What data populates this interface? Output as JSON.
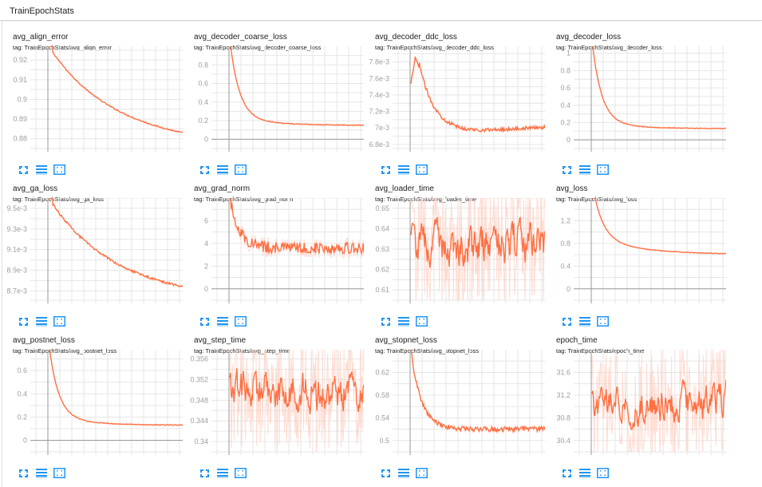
{
  "header": {
    "title": "TrainEpochStats"
  },
  "colors": {
    "line": "#ff7043",
    "line_faint": "#ffccbc",
    "grid": "#e6e6e6",
    "axis": "#999999",
    "tick_text": "#9e9e9e",
    "icon": "#2196f3"
  },
  "icons": {
    "fullscreen": "fullscreen-icon",
    "data": "toggle-log-scale-icon",
    "fit": "fit-domain-icon"
  },
  "cards": [
    {
      "title": "avg_align_error",
      "tag": "tag: TrainEpochStats/avg_align_error"
    },
    {
      "title": "avg_decoder_coarse_loss",
      "tag": "tag: TrainEpochStats/avg_decoder_coarse_loss"
    },
    {
      "title": "avg_decoder_ddc_loss",
      "tag": "tag: TrainEpochStats/avg_decoder_ddc_loss"
    },
    {
      "title": "avg_decoder_loss",
      "tag": "tag: TrainEpochStats/avg_decoder_loss"
    },
    {
      "title": "avg_ga_loss",
      "tag": "tag: TrainEpochStats/avg_ga_loss"
    },
    {
      "title": "avg_grad_norm",
      "tag": "tag: TrainEpochStats/avg_grad_norm"
    },
    {
      "title": "avg_loader_time",
      "tag": "tag: TrainEpochStats/avg_loader_time"
    },
    {
      "title": "avg_loss",
      "tag": "tag: TrainEpochStats/avg_loss"
    },
    {
      "title": "avg_postnet_loss",
      "tag": "tag: TrainEpochStats/avg_postnet_loss"
    },
    {
      "title": "avg_step_time",
      "tag": "tag: TrainEpochStats/avg_step_time"
    },
    {
      "title": "avg_stopnet_loss",
      "tag": "tag: TrainEpochStats/avg_stopnet_loss"
    },
    {
      "title": "epoch_time",
      "tag": "tag: TrainEpochStats/epoch_time"
    }
  ],
  "chart_data": [
    {
      "type": "line",
      "title": "avg_align_error",
      "yticks": [
        "0.92",
        "0.91",
        "0.9",
        "0.89",
        "0.88"
      ],
      "ytick_values": [
        0.92,
        0.91,
        0.9,
        0.89,
        0.88
      ],
      "ylim": [
        0.875,
        0.927
      ],
      "shape": "decay",
      "start": 0.927,
      "end": 0.883,
      "noise": 0.0003,
      "grid": true
    },
    {
      "type": "line",
      "title": "avg_decoder_coarse_loss",
      "yticks": [
        "0.8",
        "0.6",
        "0.4",
        "0.2",
        "0"
      ],
      "ytick_values": [
        0.8,
        0.6,
        0.4,
        0.2,
        0
      ],
      "ylim": [
        -0.1,
        1.0
      ],
      "shape": "sharpdecay",
      "start": 1.0,
      "end": 0.15,
      "noise": 0.004,
      "grid": true
    },
    {
      "type": "line",
      "title": "avg_decoder_ddc_loss",
      "yticks": [
        "7.8e-3",
        "7.6e-3",
        "7.4e-3",
        "7.2e-3",
        "7e-3",
        "6.8e-3"
      ],
      "ytick_values": [
        0.0078,
        0.0076,
        0.0074,
        0.0072,
        0.007,
        0.0068
      ],
      "ylim": [
        0.00675,
        0.00799
      ],
      "shape": "ddc",
      "start": 0.0079,
      "end": 0.00703,
      "noise": 2e-05,
      "grid": true
    },
    {
      "type": "line",
      "title": "avg_decoder_loss",
      "yticks": [
        "1",
        "0.8",
        "0.6",
        "0.4",
        "0.2",
        "0"
      ],
      "ytick_values": [
        1,
        0.8,
        0.6,
        0.4,
        0.2,
        0
      ],
      "ylim": [
        -0.1,
        1.08
      ],
      "shape": "sharpdecay",
      "start": 1.08,
      "end": 0.13,
      "noise": 0.004,
      "grid": true
    },
    {
      "type": "line",
      "title": "avg_ga_loss",
      "yticks": [
        "9.5e-3",
        "9.3e-3",
        "9.1e-3",
        "8.9e-3",
        "8.7e-3"
      ],
      "ytick_values": [
        0.0095,
        0.0093,
        0.0091,
        0.0089,
        0.0087
      ],
      "ylim": [
        0.00861,
        0.0096
      ],
      "shape": "decay",
      "start": 0.0096,
      "end": 0.00874,
      "noise": 1e-05,
      "grid": true
    },
    {
      "type": "line",
      "title": "avg_grad_norm",
      "yticks": [
        "6",
        "4",
        "2",
        "0"
      ],
      "ytick_values": [
        6,
        4,
        2,
        0
      ],
      "ylim": [
        -1,
        8
      ],
      "shape": "noisyflat",
      "start": 8,
      "end": 3.6,
      "noise": 0.5,
      "grid": true
    },
    {
      "type": "line",
      "title": "avg_loader_time",
      "yticks": [
        "0.65",
        "0.64",
        "0.63",
        "0.62",
        "0.61"
      ],
      "ytick_values": [
        0.65,
        0.64,
        0.63,
        0.62,
        0.61
      ],
      "ylim": [
        0.605,
        0.655
      ],
      "shape": "random",
      "start": 0.632,
      "end": 0.632,
      "noise": 0.008,
      "grid": true
    },
    {
      "type": "line",
      "title": "avg_loss",
      "yticks": [
        "1.2",
        "0.8",
        "0.4",
        "0"
      ],
      "ytick_values": [
        1.2,
        0.8,
        0.4,
        0
      ],
      "ylim": [
        -0.2,
        1.6
      ],
      "shape": "sharpdecay",
      "start": 1.6,
      "end": 0.62,
      "noise": 0.005,
      "grid": true
    },
    {
      "type": "line",
      "title": "avg_postnet_loss",
      "yticks": [
        "0.6",
        "0.4",
        "0.2",
        "0"
      ],
      "ytick_values": [
        0.6,
        0.4,
        0.2,
        0
      ],
      "ylim": [
        -0.1,
        0.78
      ],
      "shape": "sharpdecay",
      "start": 0.78,
      "end": 0.13,
      "noise": 0.003,
      "grid": true
    },
    {
      "type": "line",
      "title": "avg_step_time",
      "yticks": [
        "0.356",
        "0.352",
        "0.348",
        "0.344",
        "0.34"
      ],
      "ytick_values": [
        0.356,
        0.352,
        0.348,
        0.344,
        0.34
      ],
      "ylim": [
        0.338,
        0.3578
      ],
      "shape": "random",
      "start": 0.35,
      "end": 0.349,
      "noise": 0.003,
      "grid": true
    },
    {
      "type": "line",
      "title": "avg_stopnet_loss",
      "yticks": [
        "0.62",
        "0.58",
        "0.54",
        "0.5"
      ],
      "ytick_values": [
        0.62,
        0.58,
        0.54,
        0.5
      ],
      "ylim": [
        0.48,
        0.66
      ],
      "shape": "stopnet",
      "start": 0.66,
      "end": 0.52,
      "noise": 0.004,
      "grid": true
    },
    {
      "type": "line",
      "title": "epoch_time",
      "yticks": [
        "31.6",
        "31.2",
        "30.8",
        "30.4"
      ],
      "ytick_values": [
        31.6,
        31.2,
        30.8,
        30.4
      ],
      "ylim": [
        30.2,
        32.0
      ],
      "shape": "random",
      "start": 31.0,
      "end": 31.1,
      "noise": 0.25,
      "grid": true
    }
  ]
}
